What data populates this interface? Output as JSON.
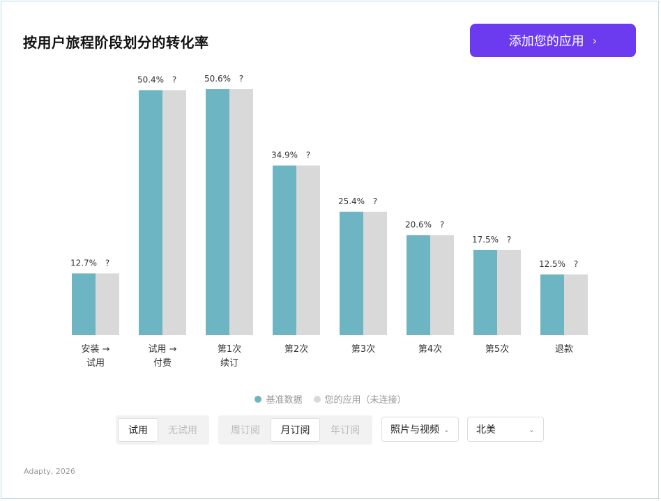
{
  "header": {
    "title": "按用户旅程阶段划分的转化率",
    "add_button_label": "添加您的应用",
    "add_button_chevron": "›"
  },
  "chart_data": {
    "type": "bar",
    "categories": [
      [
        "安装 →",
        "试用"
      ],
      [
        "试用 →",
        "付费"
      ],
      [
        "第1次",
        "续订"
      ],
      [
        "第2次"
      ],
      [
        "第3次"
      ],
      [
        "第4次"
      ],
      [
        "第5次"
      ],
      [
        "退款"
      ]
    ],
    "series": [
      {
        "name": "基准数据",
        "values": [
          12.7,
          50.4,
          50.6,
          34.9,
          25.4,
          20.6,
          17.5,
          12.5
        ],
        "labels": [
          "12.7%",
          "50.4%",
          "50.6%",
          "34.9%",
          "25.4%",
          "20.6%",
          "17.5%",
          "12.5%"
        ],
        "color": "#6eb5c3"
      },
      {
        "name": "您的应用（未连接）",
        "values": [
          12.7,
          50.4,
          50.6,
          34.9,
          25.4,
          20.6,
          17.5,
          12.5
        ],
        "labels": [
          "?",
          "?",
          "?",
          "?",
          "?",
          "?",
          "?",
          "?"
        ],
        "color": "#d9d9d9"
      }
    ],
    "ylim": [
      0,
      50.6
    ],
    "grid": false,
    "legend_position": "bottom"
  },
  "legend": {
    "benchmark": "基准数据",
    "your_app": "您的应用（未连接）",
    "benchmark_color": "#6eb5c3",
    "your_app_color": "#d9d9d9"
  },
  "filters": {
    "trial": {
      "options": [
        "试用",
        "无试用"
      ],
      "selected": "试用"
    },
    "period": {
      "options": [
        "周订阅",
        "月订阅",
        "年订阅"
      ],
      "selected": "月订阅"
    },
    "category": {
      "value": "照片与视频",
      "icon": "chevron-down-icon"
    },
    "region": {
      "value": "北美",
      "icon": "chevron-down-icon"
    }
  },
  "footer": {
    "source": "Adapty, 2026"
  }
}
